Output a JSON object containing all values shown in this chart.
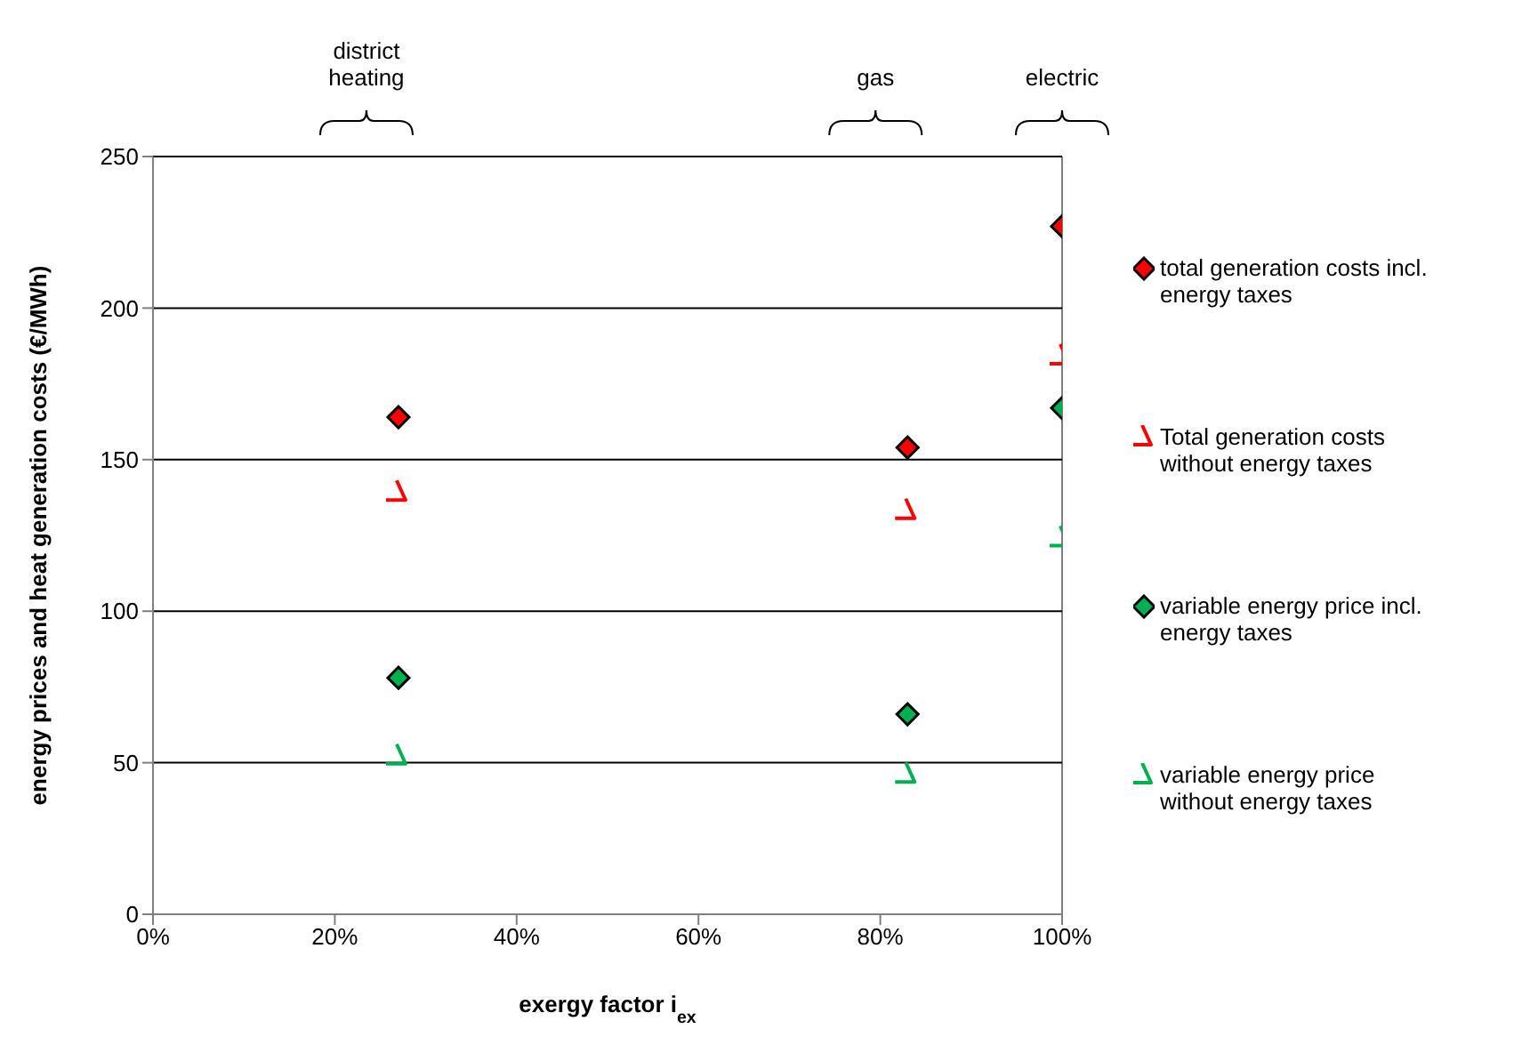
{
  "chart_data": {
    "type": "scatter",
    "xlabel": "exergy factor i$_{ex}$",
    "ylabel": "energy prices and heat generation costs (€/MWh)",
    "x": [
      27,
      83,
      100
    ],
    "series": [
      {
        "name": "total generation costs incl. energy taxes",
        "color": "#ff0000",
        "marker": "diamond",
        "values": [
          164,
          154,
          227
        ]
      },
      {
        "name": "Total generation costs without energy taxes",
        "color": "#ff0000",
        "marker": "cross",
        "values": [
          139,
          133,
          184
        ]
      },
      {
        "name": "variable energy price incl. energy taxes",
        "color": "#00b050",
        "marker": "diamond",
        "values": [
          78,
          66,
          167
        ]
      },
      {
        "name": "variable energy price without energy taxes",
        "color": "#00b050",
        "marker": "cross",
        "values": [
          52,
          46,
          124
        ]
      }
    ],
    "annotations": [
      "district heating",
      "gas",
      "electric"
    ],
    "xlim": [
      0,
      100
    ],
    "xticks": [
      {
        "value": 0,
        "label": "0%"
      },
      {
        "value": 20,
        "label": "20%"
      },
      {
        "value": 40,
        "label": "40%"
      },
      {
        "value": 60,
        "label": "60%"
      },
      {
        "value": 80,
        "label": "80%"
      },
      {
        "value": 100,
        "label": "100%"
      }
    ],
    "ylim": [
      0,
      250
    ],
    "yticks": [
      0,
      50,
      100,
      150,
      200,
      250
    ],
    "grid": "y",
    "legend": "right"
  }
}
